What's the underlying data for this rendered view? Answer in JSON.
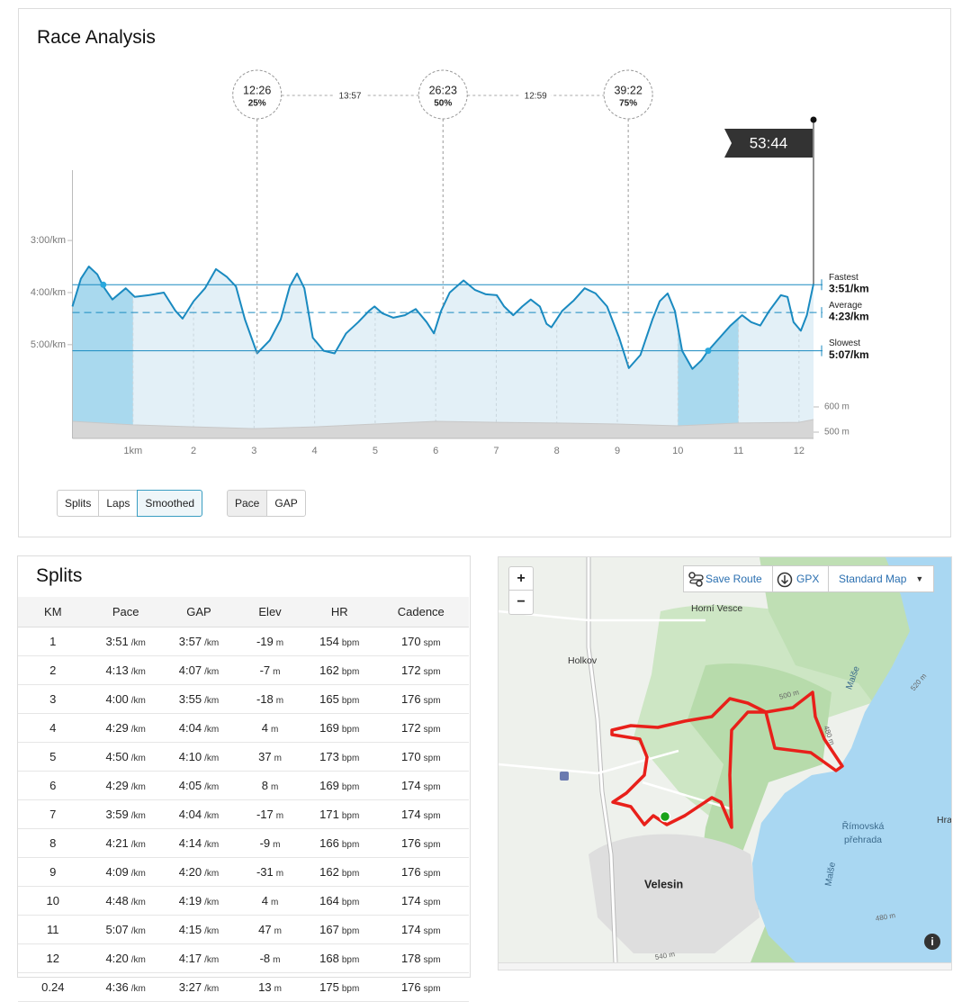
{
  "race_analysis": {
    "title": "Race Analysis",
    "view_buttons": [
      "Splits",
      "Laps",
      "Smoothed"
    ],
    "selected_view": 2,
    "metric_buttons": [
      "Pace",
      "GAP"
    ],
    "selected_metric": 0
  },
  "chart_data": {
    "type": "line",
    "x": [
      0,
      0.14,
      0.27,
      0.41,
      0.51,
      0.66,
      0.88,
      1.03,
      1.26,
      1.51,
      1.7,
      1.82,
      2.0,
      2.19,
      2.37,
      2.55,
      2.7,
      2.85,
      3.05,
      3.26,
      3.44,
      3.59,
      3.71,
      3.83,
      3.97,
      4.15,
      4.33,
      4.52,
      4.72,
      4.9,
      4.99,
      5.12,
      5.3,
      5.49,
      5.67,
      5.85,
      5.97,
      6.09,
      6.23,
      6.46,
      6.65,
      6.83,
      7.01,
      7.13,
      7.28,
      7.43,
      7.57,
      7.72,
      7.83,
      7.91,
      8.09,
      8.28,
      8.46,
      8.64,
      8.83,
      9.03,
      9.19,
      9.38,
      9.58,
      9.7,
      9.83,
      9.95,
      10.07,
      10.24,
      10.39,
      10.5,
      10.69,
      10.87,
      11.06,
      11.21,
      11.36,
      11.51,
      11.7,
      11.81,
      11.91,
      12.03,
      12.13,
      12.24
    ],
    "values": [
      256,
      224,
      210,
      219,
      233,
      248,
      235,
      245,
      243,
      240,
      261,
      270,
      250,
      235,
      213,
      222,
      233,
      271,
      310,
      295,
      271,
      233,
      218,
      235,
      292,
      307,
      310,
      287,
      274,
      261,
      256,
      264,
      269,
      266,
      259,
      274,
      287,
      261,
      240,
      226,
      237,
      242,
      243,
      256,
      266,
      256,
      248,
      256,
      276,
      280,
      261,
      249,
      235,
      241,
      256,
      292,
      327,
      312,
      271,
      250,
      241,
      261,
      307,
      328,
      318,
      307,
      292,
      278,
      266,
      274,
      278,
      261,
      243,
      245,
      274,
      284,
      266,
      230
    ],
    "color": "#1a8ac0",
    "fill_color": "#e3f0f7",
    "highlight_color": "#a9d9ee",
    "elevation": {
      "x": [
        0,
        1,
        2,
        3,
        4,
        5,
        6,
        7,
        8,
        9,
        10,
        11,
        12,
        12.24
      ],
      "values": [
        543,
        529,
        521,
        514,
        521,
        532,
        543,
        539,
        536,
        532,
        525,
        536,
        539,
        550
      ],
      "color": "#d6d6d6"
    },
    "xlim": [
      0,
      12.24
    ],
    "xticks": [
      {
        "value": 1,
        "label": "1km"
      },
      2,
      3,
      4,
      5,
      6,
      7,
      8,
      9,
      10,
      11,
      12
    ],
    "ylim": [
      408,
      99
    ],
    "yticks": [
      {
        "value": 180,
        "label": "3:00/km"
      },
      {
        "value": 240,
        "label": "4:00/km"
      },
      {
        "value": 300,
        "label": "5:00/km"
      }
    ],
    "y2lim": [
      475,
      1539
    ],
    "y2ticks": [
      {
        "value": 500,
        "label": "500 m"
      },
      {
        "value": 600,
        "label": "600 m"
      }
    ],
    "highlight_ranges": [
      [
        0,
        1
      ],
      [
        10,
        11
      ]
    ],
    "reference_lines": [
      {
        "name": "Fastest",
        "value": 231,
        "label": "3:51/km",
        "x": 0.51,
        "style": "solid"
      },
      {
        "name": "Average",
        "value": 263,
        "label": "4:23/km",
        "style": "dashed"
      },
      {
        "name": "Slowest",
        "value": 307,
        "label": "5:07/km",
        "x": 10.5,
        "style": "solid"
      }
    ],
    "milestones": [
      {
        "x": 3.05,
        "time": "12:26",
        "percent": "25%"
      },
      {
        "x": 6.12,
        "time": "26:23",
        "percent": "50%"
      },
      {
        "x": 9.18,
        "time": "39:22",
        "percent": "75%"
      }
    ],
    "splits_between": [
      "13:57",
      "12:59"
    ],
    "finish": {
      "x": 12.24,
      "time": "53:44"
    }
  },
  "splits": {
    "title": "Splits",
    "columns": [
      "KM",
      "Pace",
      "GAP",
      "Elev",
      "HR",
      "Cadence"
    ],
    "units": {
      "1": "/km",
      "2": "/km",
      "3": "m",
      "4": "bpm",
      "5": "spm"
    },
    "rows": [
      [
        1,
        "3:51",
        "3:57",
        -19,
        154,
        170
      ],
      [
        2,
        "4:13",
        "4:07",
        -7,
        162,
        172
      ],
      [
        3,
        "4:00",
        "3:55",
        -18,
        165,
        176
      ],
      [
        4,
        "4:29",
        "4:04",
        4,
        169,
        172
      ],
      [
        5,
        "4:50",
        "4:10",
        37,
        173,
        170
      ],
      [
        6,
        "4:29",
        "4:05",
        8,
        169,
        174
      ],
      [
        7,
        "3:59",
        "4:04",
        -17,
        171,
        174
      ],
      [
        8,
        "4:21",
        "4:14",
        -9,
        166,
        176
      ],
      [
        9,
        "4:09",
        "4:20",
        -31,
        162,
        176
      ],
      [
        10,
        "4:48",
        "4:19",
        4,
        164,
        174
      ],
      [
        11,
        "5:07",
        "4:15",
        47,
        167,
        174
      ],
      [
        12,
        "4:20",
        "4:17",
        -8,
        168,
        178
      ],
      [
        0.24,
        "4:36",
        "3:27",
        13,
        175,
        176
      ]
    ]
  },
  "map": {
    "zoom_in": "+",
    "zoom_out": "−",
    "save_route": "Save Route",
    "gpx": "GPX",
    "map_style": "Standard Map",
    "labels": [
      "Horní Vesce",
      "Holkov",
      "Velesin",
      "Římovská",
      "přehrada",
      "Malše",
      "Malše",
      "500 m",
      "480 m",
      "520 m",
      "480 m",
      "540 m",
      "Hra"
    ]
  }
}
